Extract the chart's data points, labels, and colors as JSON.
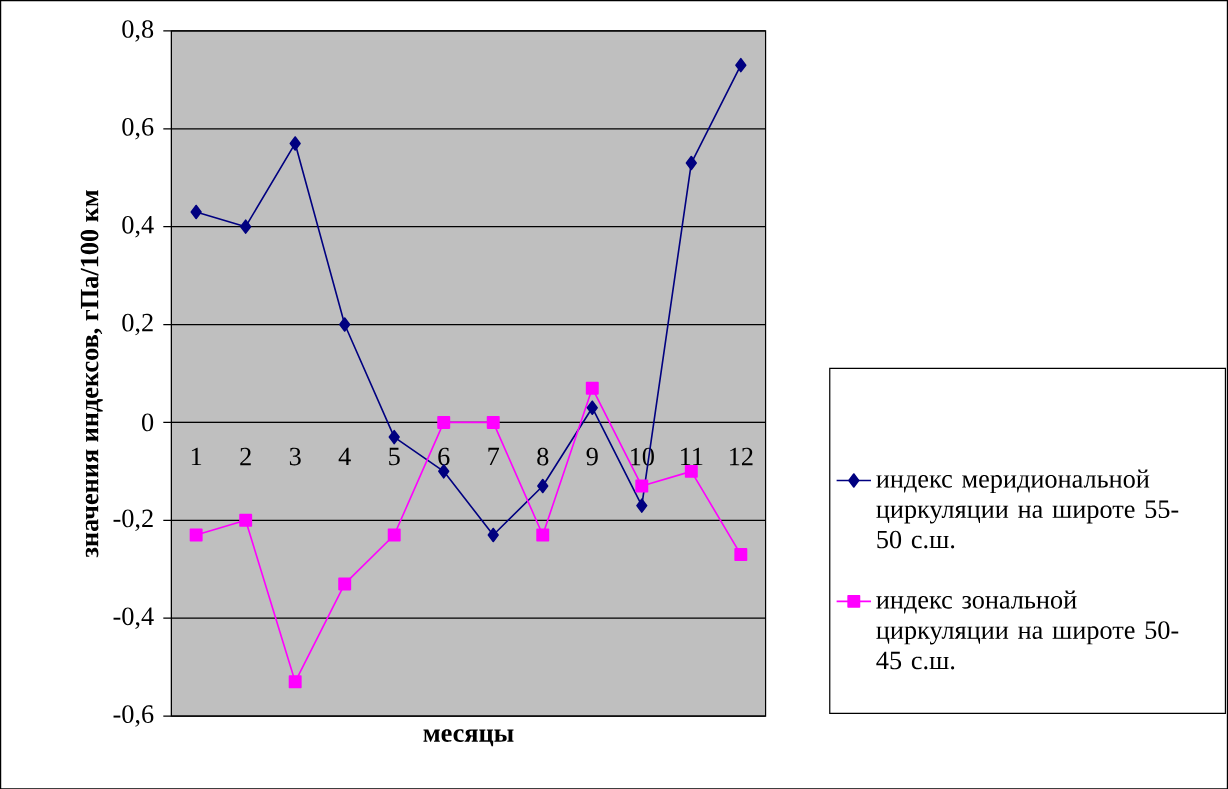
{
  "chart_data": {
    "type": "line",
    "xlabel": "месяцы",
    "ylabel": "значения индексов, гПа/100 км",
    "categories": [
      "1",
      "2",
      "3",
      "4",
      "5",
      "6",
      "7",
      "8",
      "9",
      "10",
      "11",
      "12"
    ],
    "series": [
      {
        "name": "индекс меридиональной циркуляции на широте 55-50 с.ш.",
        "color": "#000080",
        "marker": "diamond",
        "values": [
          0.43,
          0.4,
          0.57,
          0.2,
          -0.03,
          -0.1,
          -0.23,
          -0.13,
          0.03,
          -0.17,
          0.53,
          0.73
        ]
      },
      {
        "name": "индекс зональной циркуляции на широте 50-45 с.ш.",
        "color": "#ff00ff",
        "marker": "square",
        "values": [
          -0.23,
          -0.2,
          -0.53,
          -0.33,
          -0.23,
          0.0,
          0.0,
          -0.23,
          0.07,
          -0.13,
          -0.1,
          -0.27
        ]
      }
    ],
    "ylim": [
      -0.6,
      0.8
    ],
    "yticks": [
      {
        "value": -0.6,
        "label": "-0,6"
      },
      {
        "value": -0.4,
        "label": "-0,4"
      },
      {
        "value": -0.2,
        "label": "-0,2"
      },
      0,
      {
        "value": 0.2,
        "label": "0,2"
      },
      {
        "value": 0.4,
        "label": "0,4"
      },
      {
        "value": 0.6,
        "label": "0,6"
      },
      {
        "value": 0.8,
        "label": "0,8"
      }
    ],
    "grid": "y",
    "legend": "right"
  }
}
